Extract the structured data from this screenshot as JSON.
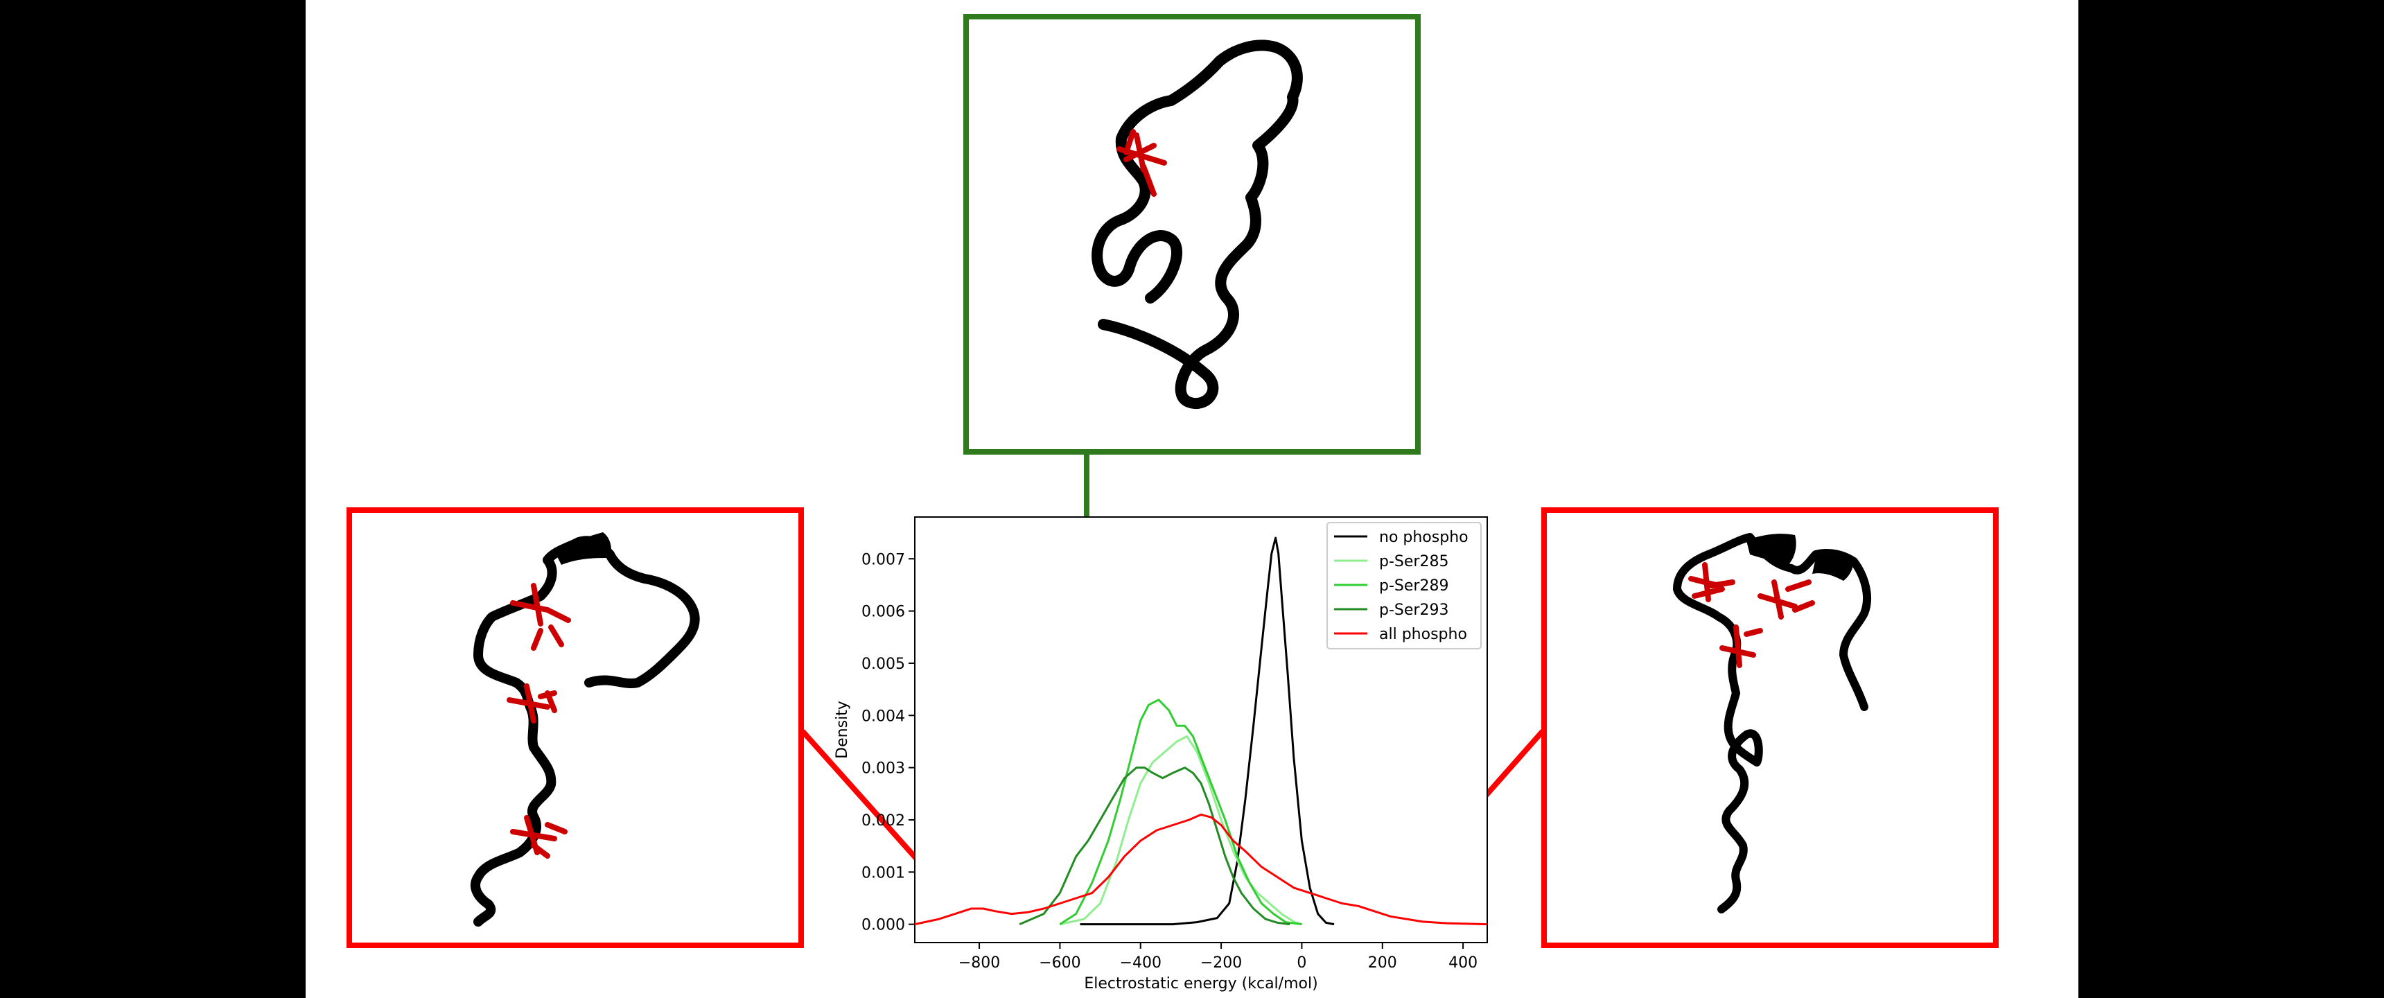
{
  "chart_data": {
    "type": "line",
    "title": "",
    "xlabel": "Electrostatic energy (kcal/mol)",
    "ylabel": "Density",
    "xlim": [
      -960,
      460
    ],
    "ylim": [
      -0.00035,
      0.0078
    ],
    "xticks": [
      -800,
      -600,
      -400,
      -200,
      0,
      200,
      400
    ],
    "xtick_labels": [
      "−800",
      "−600",
      "−400",
      "−200",
      "0",
      "200",
      "400"
    ],
    "yticks": [
      0.0,
      0.001,
      0.002,
      0.003,
      0.004,
      0.005,
      0.006,
      0.007
    ],
    "ytick_labels": [
      "0.000",
      "0.001",
      "0.002",
      "0.003",
      "0.004",
      "0.005",
      "0.006",
      "0.007"
    ],
    "grid": false,
    "legend_position": "top-right",
    "series": [
      {
        "name": "no phospho",
        "color": "#000000",
        "points": [
          [
            -550,
            0
          ],
          [
            -320,
            0
          ],
          [
            -260,
            4e-05
          ],
          [
            -210,
            0.00012
          ],
          [
            -180,
            0.0004
          ],
          [
            -160,
            0.0012
          ],
          [
            -140,
            0.0024
          ],
          [
            -120,
            0.0038
          ],
          [
            -100,
            0.0053
          ],
          [
            -85,
            0.0064
          ],
          [
            -75,
            0.0071
          ],
          [
            -65,
            0.0074
          ],
          [
            -58,
            0.0071
          ],
          [
            -50,
            0.0063
          ],
          [
            -35,
            0.0048
          ],
          [
            -20,
            0.0032
          ],
          [
            0,
            0.0016
          ],
          [
            20,
            0.0007
          ],
          [
            40,
            0.0002
          ],
          [
            60,
            3e-05
          ],
          [
            80,
            0
          ]
        ]
      },
      {
        "name": "p-Ser285",
        "color": "#90ee90",
        "points": [
          [
            -600,
            0
          ],
          [
            -540,
            0.0001
          ],
          [
            -500,
            0.0004
          ],
          [
            -460,
            0.0012
          ],
          [
            -430,
            0.002
          ],
          [
            -400,
            0.0027
          ],
          [
            -370,
            0.0031
          ],
          [
            -340,
            0.0033
          ],
          [
            -310,
            0.0035
          ],
          [
            -285,
            0.0036
          ],
          [
            -260,
            0.0033
          ],
          [
            -230,
            0.0027
          ],
          [
            -200,
            0.002
          ],
          [
            -170,
            0.0014
          ],
          [
            -140,
            0.0009
          ],
          [
            -110,
            0.0006
          ],
          [
            -80,
            0.0004
          ],
          [
            -50,
            0.0002
          ],
          [
            -20,
            5e-05
          ],
          [
            0,
            0
          ]
        ]
      },
      {
        "name": "p-Ser289",
        "color": "#32cd32",
        "points": [
          [
            -600,
            0
          ],
          [
            -560,
            0.0002
          ],
          [
            -520,
            0.0008
          ],
          [
            -480,
            0.0016
          ],
          [
            -450,
            0.0024
          ],
          [
            -420,
            0.0033
          ],
          [
            -400,
            0.0039
          ],
          [
            -380,
            0.0042
          ],
          [
            -355,
            0.0043
          ],
          [
            -330,
            0.0041
          ],
          [
            -310,
            0.0038
          ],
          [
            -290,
            0.0038
          ],
          [
            -270,
            0.0036
          ],
          [
            -250,
            0.0032
          ],
          [
            -220,
            0.0026
          ],
          [
            -190,
            0.002
          ],
          [
            -160,
            0.0013
          ],
          [
            -130,
            0.0008
          ],
          [
            -100,
            0.0004
          ],
          [
            -70,
            0.0002
          ],
          [
            -40,
            4e-05
          ],
          [
            0,
            0
          ]
        ]
      },
      {
        "name": "p-Ser293",
        "color": "#228b22",
        "points": [
          [
            -700,
            0
          ],
          [
            -640,
            0.0002
          ],
          [
            -600,
            0.0006
          ],
          [
            -560,
            0.0013
          ],
          [
            -530,
            0.0016
          ],
          [
            -500,
            0.002
          ],
          [
            -470,
            0.0024
          ],
          [
            -440,
            0.0028
          ],
          [
            -410,
            0.003
          ],
          [
            -390,
            0.003
          ],
          [
            -370,
            0.0029
          ],
          [
            -345,
            0.0028
          ],
          [
            -320,
            0.0029
          ],
          [
            -290,
            0.003
          ],
          [
            -270,
            0.0029
          ],
          [
            -250,
            0.0027
          ],
          [
            -230,
            0.0023
          ],
          [
            -210,
            0.0018
          ],
          [
            -190,
            0.0013
          ],
          [
            -170,
            0.0009
          ],
          [
            -150,
            0.0006
          ],
          [
            -120,
            0.0003
          ],
          [
            -90,
            0.0001
          ],
          [
            -60,
            3e-05
          ],
          [
            -30,
            0
          ]
        ]
      },
      {
        "name": "all phospho",
        "color": "#ff0000",
        "points": [
          [
            -960,
            0
          ],
          [
            -900,
            0.0001
          ],
          [
            -860,
            0.0002
          ],
          [
            -820,
            0.0003
          ],
          [
            -790,
            0.0003
          ],
          [
            -760,
            0.00025
          ],
          [
            -720,
            0.0002
          ],
          [
            -680,
            0.00023
          ],
          [
            -640,
            0.0003
          ],
          [
            -600,
            0.0004
          ],
          [
            -560,
            0.0005
          ],
          [
            -520,
            0.0006
          ],
          [
            -480,
            0.0009
          ],
          [
            -440,
            0.0013
          ],
          [
            -400,
            0.0016
          ],
          [
            -360,
            0.0018
          ],
          [
            -320,
            0.0019
          ],
          [
            -280,
            0.002
          ],
          [
            -250,
            0.0021
          ],
          [
            -225,
            0.00205
          ],
          [
            -200,
            0.0019
          ],
          [
            -170,
            0.0016
          ],
          [
            -140,
            0.0014
          ],
          [
            -100,
            0.0011
          ],
          [
            -60,
            0.0009
          ],
          [
            -20,
            0.0007
          ],
          [
            20,
            0.0006
          ],
          [
            60,
            0.0005
          ],
          [
            100,
            0.0004
          ],
          [
            140,
            0.00035
          ],
          [
            180,
            0.00025
          ],
          [
            220,
            0.00015
          ],
          [
            260,
            0.0001
          ],
          [
            300,
            5e-05
          ],
          [
            360,
            2e-05
          ],
          [
            460,
            0
          ]
        ]
      }
    ]
  },
  "structures": {
    "top": {
      "frame_color": "#2f7a1c"
    },
    "left": {
      "frame_color": "#ff0000"
    },
    "right": {
      "frame_color": "#ff0000"
    }
  }
}
